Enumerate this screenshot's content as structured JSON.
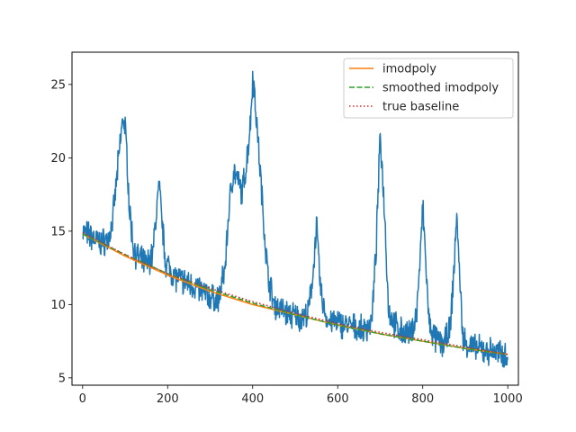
{
  "chart_data": {
    "type": "line",
    "title": "",
    "xlabel": "",
    "ylabel": "",
    "xlim": [
      -25,
      1025
    ],
    "ylim": [
      4.5,
      27.2
    ],
    "x_ticks": [
      0,
      200,
      400,
      600,
      800,
      1000
    ],
    "y_ticks": [
      5,
      10,
      15,
      20,
      25
    ],
    "x_tick_labels": [
      "0",
      "200",
      "400",
      "600",
      "800",
      "1000"
    ],
    "y_tick_labels": [
      "5",
      "10",
      "15",
      "20",
      "25"
    ],
    "grid": false,
    "legend_position": "top-right",
    "colors": {
      "signal": "#1f77b4",
      "imodpoly": "#ff7f0e",
      "smoothed_imodpoly": "#2ca02c",
      "true_baseline": "#d62728"
    },
    "legend": [
      {
        "label": "imodpoly",
        "style": "solid",
        "color": "#ff7f0e"
      },
      {
        "label": "smoothed imodpoly",
        "style": "dashed",
        "color": "#2ca02c"
      },
      {
        "label": "true baseline",
        "style": "dotted",
        "color": "#d62728"
      }
    ],
    "series": [
      {
        "style": "solid",
        "color": "#1f77b4",
        "x": [
          0,
          20,
          40,
          60,
          70,
          80,
          90,
          95,
          100,
          105,
          110,
          120,
          130,
          150,
          165,
          175,
          180,
          185,
          195,
          220,
          260,
          300,
          320,
          335,
          345,
          355,
          365,
          375,
          385,
          395,
          400,
          405,
          415,
          425,
          435,
          450,
          480,
          510,
          530,
          540,
          550,
          560,
          575,
          620,
          660,
          680,
          690,
          700,
          710,
          720,
          740,
          770,
          785,
          795,
          800,
          805,
          815,
          830,
          850,
          865,
          875,
          880,
          885,
          895,
          920,
          960,
          990,
          1000
        ],
        "y": [
          15.0,
          14.6,
          14.2,
          14.4,
          15.5,
          18.5,
          21.5,
          22.8,
          22.0,
          19.8,
          16.5,
          13.8,
          13.2,
          12.7,
          13.4,
          16.8,
          18.1,
          16.2,
          12.9,
          11.8,
          11.3,
          10.5,
          10.3,
          12.5,
          16.8,
          19.2,
          18.4,
          17.6,
          19.5,
          22.5,
          25.6,
          24.2,
          20.2,
          16.0,
          12.2,
          10.0,
          9.4,
          9.1,
          9.3,
          11.5,
          15.4,
          10.8,
          8.9,
          8.6,
          8.2,
          8.8,
          13.5,
          21.6,
          16.5,
          9.5,
          8.3,
          7.9,
          9.2,
          13.6,
          16.8,
          14.0,
          8.6,
          7.6,
          7.3,
          8.4,
          13.2,
          16.4,
          12.8,
          7.6,
          7.0,
          6.8,
          6.6,
          6.6
        ]
      },
      {
        "name": "imodpoly",
        "style": "solid",
        "color": "#ff7f0e",
        "x": [
          0,
          100,
          200,
          300,
          400,
          500,
          600,
          700,
          800,
          900,
          1000
        ],
        "y": [
          14.8,
          13.3,
          12.0,
          10.9,
          10.0,
          9.3,
          8.6,
          8.0,
          7.5,
          7.0,
          6.6
        ]
      },
      {
        "name": "smoothed imodpoly",
        "style": "dashed",
        "color": "#2ca02c",
        "x": [
          0,
          100,
          200,
          300,
          400,
          500,
          600,
          700,
          800,
          900,
          1000
        ],
        "y": [
          14.8,
          13.4,
          12.1,
          11.0,
          10.1,
          9.3,
          8.6,
          8.0,
          7.5,
          7.0,
          6.6
        ]
      },
      {
        "name": "true baseline",
        "style": "dotted",
        "color": "#d62728",
        "x": [
          0,
          100,
          200,
          300,
          400,
          500,
          600,
          700,
          800,
          900,
          1000
        ],
        "y": [
          14.9,
          13.4,
          12.1,
          11.1,
          10.2,
          9.4,
          8.7,
          8.1,
          7.6,
          7.1,
          6.6
        ]
      }
    ]
  }
}
